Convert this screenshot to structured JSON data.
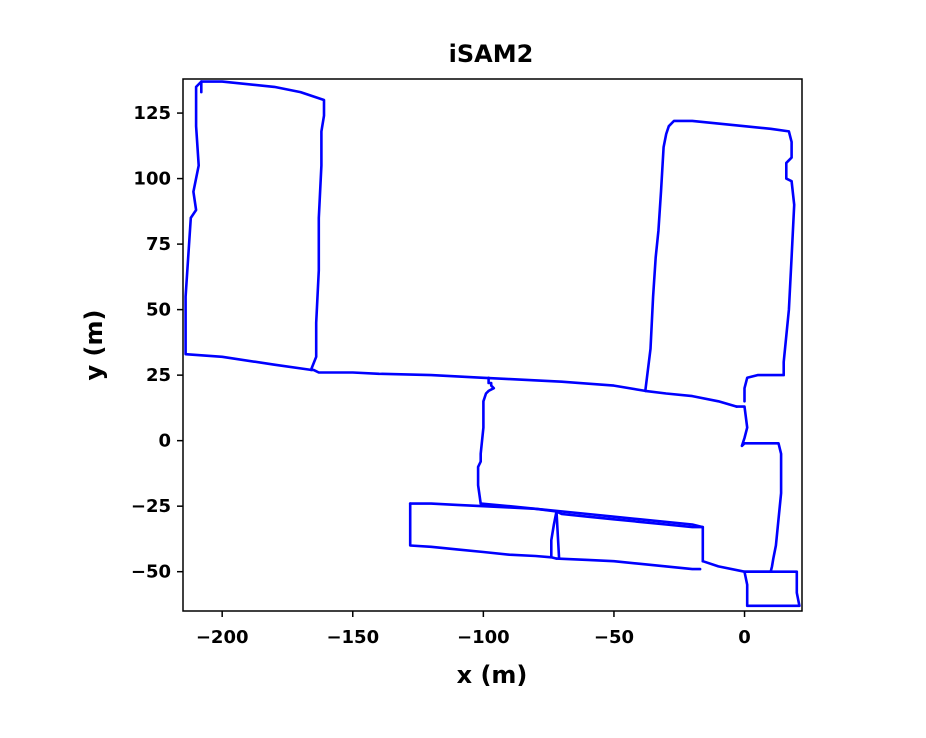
{
  "chart_data": {
    "type": "line",
    "title": "iSAM2",
    "xlabel": "x (m)",
    "ylabel": "y (m)",
    "xlim": [
      -215,
      22
    ],
    "ylim": [
      -65,
      138
    ],
    "x_ticks": [
      -200,
      -150,
      -100,
      -50,
      0
    ],
    "x_tick_labels": [
      "−200",
      "−150",
      "−100",
      "−50",
      "0"
    ],
    "y_ticks": [
      125,
      100,
      75,
      50,
      25,
      0,
      -25,
      -50
    ],
    "y_tick_labels": [
      "125",
      "100",
      "75",
      "50",
      "25",
      "0",
      "−25",
      "−50"
    ],
    "grid": false,
    "series": [
      {
        "color": "#0000ff",
        "segments": [
          {
            "x": [
              -208,
              -208,
              -210,
              -210,
              -209,
              -211,
              -210,
              -212,
              -213,
              -214,
              -214,
              -200,
              -180,
              -166,
              -165,
              -163,
              -150,
              -140,
              -120,
              -100,
              -90,
              -70,
              -50,
              -38,
              -30,
              -20,
              -10,
              -3
            ],
            "y": [
              133,
              137,
              135,
              120,
              105,
              95,
              88,
              85,
              70,
              55,
              33,
              32,
              29,
              27,
              27,
              26,
              26,
              25.5,
              25,
              24,
              23.5,
              22.5,
              21,
              19,
              18,
              17,
              15,
              13
            ]
          },
          {
            "x": [
              -208,
              -200,
              -180,
              -170,
              -161,
              -161,
              -162,
              -162,
              -163,
              -163,
              -164,
              -164,
              -166
            ],
            "y": [
              137,
              137,
              135,
              133,
              130,
              124,
              118,
              105,
              85,
              65,
              45,
              32,
              27
            ]
          },
          {
            "x": [
              -38,
              -36,
              -35,
              -34,
              -33,
              -32,
              -31,
              -30,
              -29,
              -27,
              -20,
              -10,
              0,
              10,
              17,
              18,
              18,
              16,
              16,
              18,
              19,
              18,
              17,
              15,
              15,
              10,
              5,
              1,
              0,
              0
            ],
            "y": [
              19,
              35,
              55,
              70,
              80,
              95,
              112,
              117,
              120,
              122,
              122,
              121,
              120,
              119,
              118,
              114,
              108,
              106,
              100,
              99,
              90,
              70,
              50,
              30,
              25,
              25,
              25,
              24,
              20,
              15
            ]
          },
          {
            "x": [
              -3,
              0,
              1,
              0,
              -1,
              0,
              5,
              13,
              14,
              14,
              13,
              12,
              11,
              10.5,
              10
            ],
            "y": [
              13,
              13,
              5,
              1,
              -2,
              -1,
              -1,
              -1,
              -5,
              -20,
              -30,
              -40,
              -45,
              -48,
              -50
            ]
          },
          {
            "x": [
              -98,
              -98,
              -97,
              -97,
              -96,
              -98,
              -99,
              -100,
              -100,
              -101,
              -101,
              -102,
              -102,
              -101
            ],
            "y": [
              24,
              22,
              22,
              21,
              20,
              19,
              18,
              15,
              5,
              -5,
              -8,
              -10,
              -17,
              -24
            ]
          },
          {
            "x": [
              -101,
              -90,
              -80,
              -70,
              -60,
              -50,
              -40,
              -30,
              -20,
              -16,
              -16
            ],
            "y": [
              -24,
              -25,
              -26,
              -27,
              -28,
              -29,
              -30,
              -31,
              -32,
              -33,
              -46
            ]
          },
          {
            "x": [
              -16,
              -10,
              0,
              5,
              7,
              10
            ],
            "y": [
              -46,
              -48,
              -50,
              -50,
              -50,
              -50
            ]
          },
          {
            "x": [
              -128,
              -120,
              -110,
              -100,
              -90,
              -80,
              -72,
              -70,
              -60,
              -50,
              -40,
              -30,
              -20,
              -18,
              -16
            ],
            "y": [
              -24,
              -24,
              -24.5,
              -25,
              -25.5,
              -26,
              -27,
              -28,
              -29,
              -30,
              -31,
              -32,
              -33,
              -33,
              -33
            ]
          },
          {
            "x": [
              -128,
              -128,
              -128,
              -120,
              -110,
              -100,
              -90,
              -80,
              -74,
              -72
            ],
            "y": [
              -24,
              -32,
              -40,
              -40.5,
              -41.5,
              -42.5,
              -43.5,
              -44,
              -44.5,
              -45
            ]
          },
          {
            "x": [
              -72,
              -73,
              -74,
              -74
            ],
            "y": [
              -27,
              -32,
              -38,
              -44
            ]
          },
          {
            "x": [
              -72,
              -60,
              -50,
              -40,
              -30,
              -20,
              -17
            ],
            "y": [
              -45,
              -45.5,
              -46,
              -47,
              -48,
              -49,
              -49
            ]
          },
          {
            "x": [
              -72,
              -71
            ],
            "y": [
              -27,
              -45
            ]
          },
          {
            "x": [
              0,
              10,
              20,
              20,
              21,
              20,
              10,
              1,
              1,
              0
            ],
            "y": [
              -50,
              -50,
              -50,
              -58,
              -63,
              -63,
              -63,
              -63,
              -55,
              -50
            ]
          }
        ]
      }
    ]
  }
}
